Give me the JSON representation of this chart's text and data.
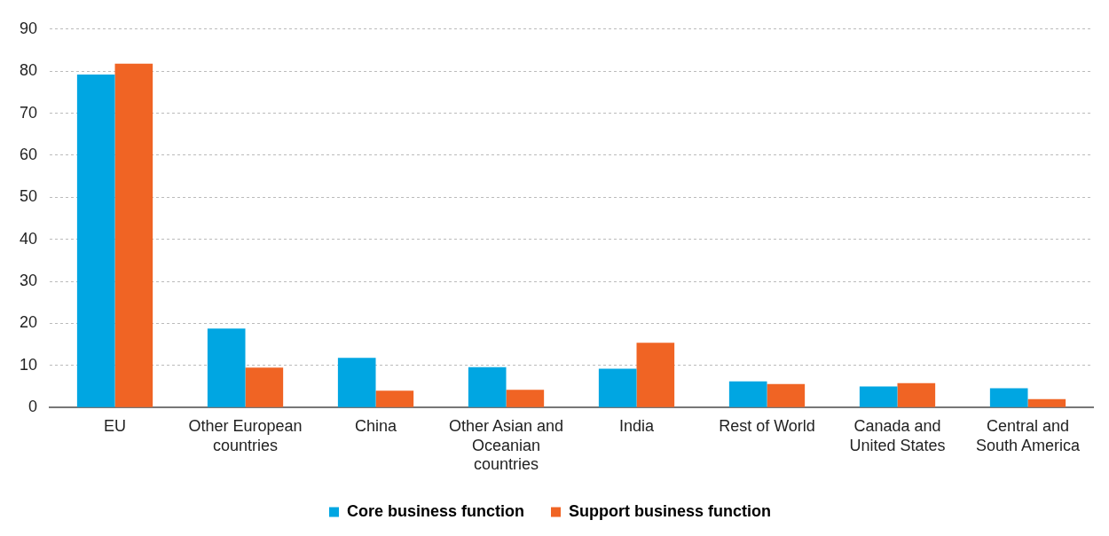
{
  "chart_data": {
    "type": "bar",
    "categories": [
      "EU",
      "Other European countries",
      "China",
      "Other Asian and Oceanian countries",
      "India",
      "Rest of World",
      "Canada and United States",
      "Central and South America"
    ],
    "series": [
      {
        "name": "Core business function",
        "color": "#00a6e2",
        "values": [
          79.2,
          18.8,
          11.8,
          9.6,
          9.2,
          6.2,
          5.0,
          4.6
        ]
      },
      {
        "name": "Support business function",
        "color": "#f06424",
        "values": [
          81.8,
          9.5,
          4.0,
          4.2,
          15.4,
          5.6,
          5.8,
          2.0
        ]
      }
    ],
    "ylim": [
      0,
      90
    ],
    "yticks": [
      0,
      10,
      20,
      30,
      40,
      50,
      60,
      70,
      80,
      90
    ],
    "grid": "y",
    "legend": "bottom"
  }
}
